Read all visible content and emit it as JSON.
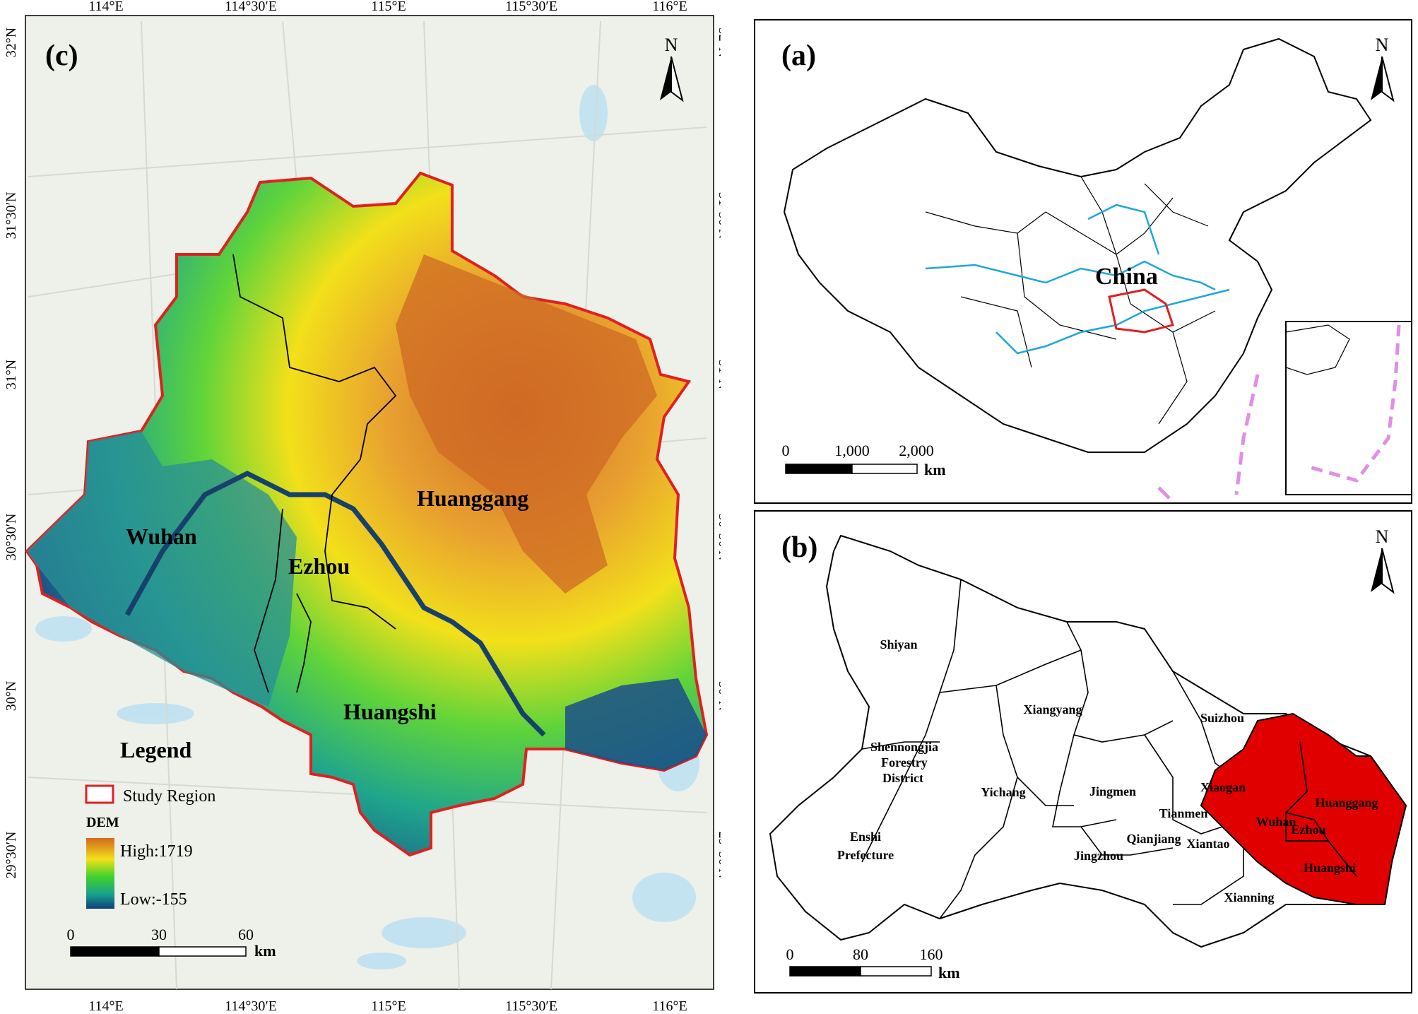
{
  "panel_c": {
    "label": "(c)",
    "north": "N",
    "lon_ticks": [
      "114°E",
      "114°30′E",
      "115°E",
      "115°30′E",
      "116°E"
    ],
    "lat_ticks": [
      "32°N",
      "31°30′N",
      "31°N",
      "30°30′N",
      "30°N",
      "29°30′N"
    ],
    "cities": [
      "Huanggang",
      "Wuhan",
      "Ezhou",
      "Huangshi"
    ],
    "legend": {
      "title": "Legend",
      "study_region": "Study Region",
      "dem_title": "DEM",
      "high": "High:1719",
      "low": "Low:-155",
      "colors": {
        "high": "#d2691e",
        "mid": "#f2e01a",
        "midlow": "#3fd12e",
        "low": "#0f3f7a"
      }
    },
    "scale": {
      "ticks": [
        "0",
        "30",
        "60"
      ],
      "unit": "km"
    }
  },
  "panel_a": {
    "label": "(a)",
    "north": "N",
    "country": "China",
    "scale": {
      "ticks": [
        "0",
        "1,000",
        "2,000"
      ],
      "unit": "km"
    }
  },
  "panel_b": {
    "label": "(b)",
    "north": "N",
    "regions": [
      "Shiyan",
      "Xiangyang",
      "Suizhou",
      "Shennongjia",
      "Forestry",
      "District",
      "Jingmen",
      "Xiaogan",
      "Yichang",
      "Tianmen",
      "Enshi",
      "Prefecture",
      "Qianjiang",
      "Xiantao",
      "Jingzhou",
      "Xianning",
      "Wuhan",
      "Huanggang",
      "Ezhou",
      "Huangshi"
    ],
    "scale": {
      "ticks": [
        "0",
        "80",
        "160"
      ],
      "unit": "km"
    },
    "highlight_color": "#e00000"
  },
  "colors": {
    "study_outline": "#e02020",
    "river": "#1fa6d9",
    "frame": "#000000"
  }
}
